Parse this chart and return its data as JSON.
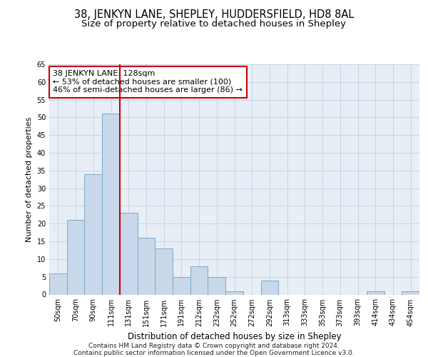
{
  "title1": "38, JENKYN LANE, SHEPLEY, HUDDERSFIELD, HD8 8AL",
  "title2": "Size of property relative to detached houses in Shepley",
  "xlabel": "Distribution of detached houses by size in Shepley",
  "ylabel": "Number of detached properties",
  "footnote1": "Contains HM Land Registry data © Crown copyright and database right 2024.",
  "footnote2": "Contains public sector information licensed under the Open Government Licence v3.0.",
  "annotation_title": "38 JENKYN LANE: 128sqm",
  "annotation_line2": "← 53% of detached houses are smaller (100)",
  "annotation_line3": "46% of semi-detached houses are larger (86) →",
  "bar_labels": [
    "50sqm",
    "70sqm",
    "90sqm",
    "111sqm",
    "131sqm",
    "151sqm",
    "171sqm",
    "191sqm",
    "212sqm",
    "232sqm",
    "252sqm",
    "272sqm",
    "292sqm",
    "313sqm",
    "333sqm",
    "353sqm",
    "373sqm",
    "393sqm",
    "414sqm",
    "434sqm",
    "454sqm"
  ],
  "bar_values": [
    6,
    21,
    34,
    51,
    23,
    16,
    13,
    5,
    8,
    5,
    1,
    0,
    4,
    0,
    0,
    0,
    0,
    0,
    1,
    0,
    1
  ],
  "bar_color": "#c8d8ea",
  "bar_edge_color": "#7aa8c8",
  "vline_color": "#cc0000",
  "vline_x": 3.5,
  "ylim": [
    0,
    65
  ],
  "yticks": [
    0,
    5,
    10,
    15,
    20,
    25,
    30,
    35,
    40,
    45,
    50,
    55,
    60,
    65
  ],
  "grid_color": "#c8d4e4",
  "bg_color": "#e8eef6",
  "annotation_box_facecolor": "#ffffff",
  "annotation_box_edgecolor": "#cc0000",
  "title1_fontsize": 10.5,
  "title2_fontsize": 9.5,
  "xlabel_fontsize": 8.5,
  "ylabel_fontsize": 8,
  "tick_fontsize": 7,
  "annotation_fontsize": 8,
  "footnote_fontsize": 6.5
}
